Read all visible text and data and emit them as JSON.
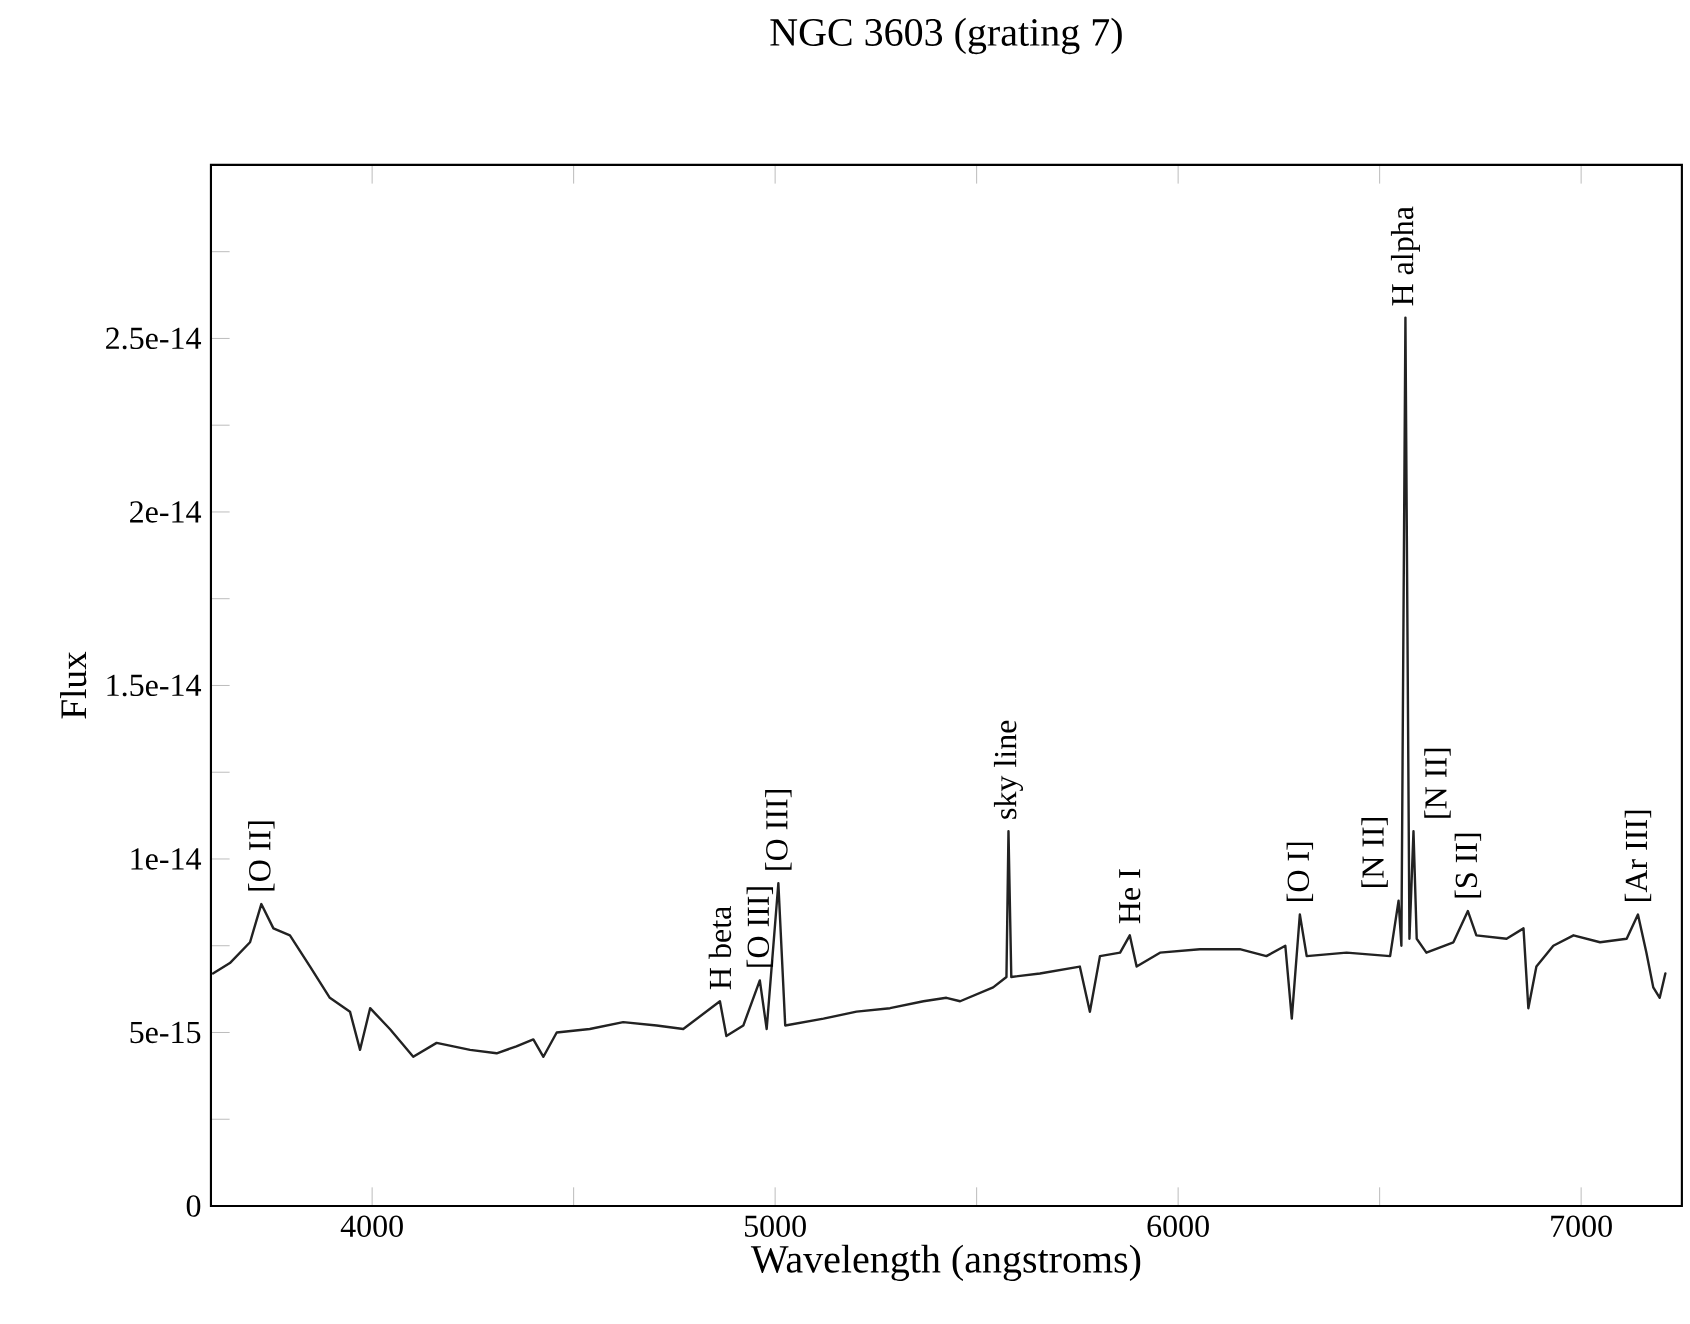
{
  "chart_data": {
    "type": "line",
    "title": "NGC 3603 (grating 7)",
    "xlabel": "Wavelength (angstroms)",
    "ylabel": "Flux",
    "xlim": [
      3600,
      7250
    ],
    "xticks": [
      4000,
      {
        "value": 4500,
        "label": null
      },
      5000,
      {
        "value": 5500,
        "label": null
      },
      6000,
      {
        "value": 6500,
        "label": null
      },
      7000
    ],
    "ylim": [
      0,
      3e-14
    ],
    "yticks": [
      {
        "value": 0,
        "label": "0"
      },
      {
        "value": 2.5e-15,
        "label": null
      },
      {
        "value": 5e-15,
        "label": "5e-15"
      },
      {
        "value": 7.5e-15,
        "label": null
      },
      {
        "value": 1e-14,
        "label": "1e-14"
      },
      {
        "value": 1.25e-14,
        "label": null
      },
      {
        "value": 1.5e-14,
        "label": "1.5e-14"
      },
      {
        "value": 1.75e-14,
        "label": null
      },
      {
        "value": 2e-14,
        "label": "2e-14"
      },
      {
        "value": 2.25e-14,
        "label": null
      },
      {
        "value": 2.5e-14,
        "label": "2.5e-14"
      },
      {
        "value": 2.75e-14,
        "label": null
      }
    ],
    "grid": false,
    "marker": "none",
    "line_style": "solid",
    "series": [
      {
        "color": "#222222",
        "x": [
          3605,
          3647,
          3697,
          3725,
          3755,
          3796,
          3846,
          3895,
          3945,
          3970,
          3995,
          4044,
          4102,
          4160,
          4243,
          4309,
          4358,
          4400,
          4425,
          4458,
          4540,
          4623,
          4706,
          4772,
          4863,
          4879,
          4921,
          4962,
          4979,
          5008,
          5025,
          5120,
          5202,
          5285,
          5368,
          5425,
          5459,
          5541,
          5574,
          5579,
          5586,
          5657,
          5756,
          5781,
          5806,
          5856,
          5880,
          5897,
          5955,
          6054,
          6153,
          6219,
          6266,
          6282,
          6302,
          6319,
          6418,
          6526,
          6547,
          6554,
          6564,
          6574,
          6584,
          6592,
          6616,
          6683,
          6719,
          6740,
          6815,
          6857,
          6869,
          6889,
          6931,
          6981,
          7047,
          7113,
          7141,
          7162,
          7179,
          7195,
          7209
        ],
        "values": [
          6.7e-15,
          7e-15,
          7.6e-15,
          8.7e-15,
          8e-15,
          7.8e-15,
          6.9e-15,
          6e-15,
          5.6e-15,
          4.5e-15,
          5.7e-15,
          5.1e-15,
          4.3e-15,
          4.7e-15,
          4.5e-15,
          4.4e-15,
          4.6e-15,
          4.8e-15,
          4.3e-15,
          5e-15,
          5.1e-15,
          5.3e-15,
          5.2e-15,
          5.1e-15,
          5.9e-15,
          4.9e-15,
          5.2e-15,
          6.5e-15,
          5.1e-15,
          9.3e-15,
          5.2e-15,
          5.4e-15,
          5.6e-15,
          5.7e-15,
          5.9e-15,
          6e-15,
          5.9e-15,
          6.3e-15,
          6.6e-15,
          1.08e-14,
          6.6e-15,
          6.7e-15,
          6.9e-15,
          5.6e-15,
          7.2e-15,
          7.3e-15,
          7.8e-15,
          6.9e-15,
          7.3e-15,
          7.4e-15,
          7.4e-15,
          7.2e-15,
          7.5e-15,
          5.4e-15,
          8.4e-15,
          7.2e-15,
          7.3e-15,
          7.2e-15,
          8.8e-15,
          7.5e-15,
          2.56e-14,
          7.7e-15,
          1.08e-14,
          7.7e-15,
          7.3e-15,
          7.6e-15,
          8.5e-15,
          7.8e-15,
          7.7e-15,
          8e-15,
          5.7e-15,
          6.9e-15,
          7.5e-15,
          7.8e-15,
          7.6e-15,
          7.7e-15,
          8.4e-15,
          7.3e-15,
          6.3e-15,
          6e-15,
          6.7e-15
        ]
      }
    ],
    "annotations": [
      {
        "text": "[O II]",
        "x": 3725,
        "y": 8.7e-15
      },
      {
        "text": "H beta",
        "x": 4863,
        "y": 5.9e-15
      },
      {
        "text": "[O III]",
        "x": 4962,
        "y": 6.5e-15
      },
      {
        "text": "[O III]",
        "x": 5008,
        "y": 9.3e-15
      },
      {
        "text": "sky line",
        "x": 5579,
        "y": 1.08e-14
      },
      {
        "text": "He I",
        "x": 5880,
        "y": 7.8e-15
      },
      {
        "text": "[O I]",
        "x": 6302,
        "y": 8.4e-15
      },
      {
        "text": "[N II]",
        "x": 6547,
        "y": 8.8e-15
      },
      {
        "text": "H alpha",
        "x": 6564,
        "y": 2.56e-14
      },
      {
        "text": "[N II]",
        "x": 6584,
        "y": 1.08e-14
      },
      {
        "text": "[S II]",
        "x": 6719,
        "y": 8.5e-15
      },
      {
        "text": "[Ar III]",
        "x": 7141,
        "y": 8.4e-15
      }
    ]
  }
}
